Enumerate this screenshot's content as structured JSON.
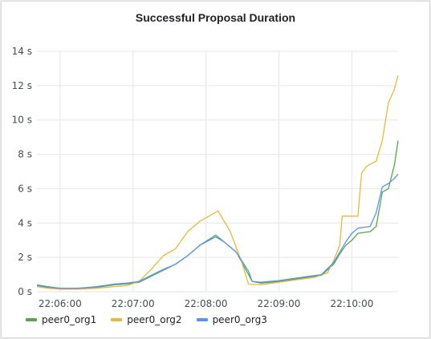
{
  "panel": {
    "title": "Successful Proposal Duration"
  },
  "chart_data": {
    "type": "line",
    "title": "Successful Proposal Duration",
    "xlabel": "",
    "ylabel": "",
    "ylim": [
      0,
      14
    ],
    "yticks": [
      {
        "value": 0,
        "label": "0 s"
      },
      {
        "value": 2,
        "label": "2 s"
      },
      {
        "value": 4,
        "label": "4 s"
      },
      {
        "value": 6,
        "label": "6 s"
      },
      {
        "value": 8,
        "label": "8 s"
      },
      {
        "value": 10,
        "label": "10 s"
      },
      {
        "value": 12,
        "label": "12 s"
      },
      {
        "value": 14,
        "label": "14 s"
      }
    ],
    "xlim": [
      "22:05:41",
      "22:10:38"
    ],
    "xticks": [
      {
        "value": "22:06:00",
        "label": "22:06:00"
      },
      {
        "value": "22:07:00",
        "label": "22:07:00"
      },
      {
        "value": "22:08:00",
        "label": "22:08:00"
      },
      {
        "value": "22:09:00",
        "label": "22:09:00"
      },
      {
        "value": "22:10:00",
        "label": "22:10:00"
      }
    ],
    "grid": true,
    "legend_position": "bottom-left",
    "series": [
      {
        "name": "peer0_org1",
        "color": "#56a64b",
        "points": [
          [
            "22:05:41",
            0.35
          ],
          [
            "22:05:50",
            0.25
          ],
          [
            "22:06:00",
            0.2
          ],
          [
            "22:06:15",
            0.2
          ],
          [
            "22:06:30",
            0.25
          ],
          [
            "22:06:45",
            0.4
          ],
          [
            "22:06:55",
            0.45
          ],
          [
            "22:07:05",
            0.55
          ],
          [
            "22:07:15",
            0.9
          ],
          [
            "22:07:25",
            1.25
          ],
          [
            "22:07:35",
            1.6
          ],
          [
            "22:07:45",
            2.1
          ],
          [
            "22:07:55",
            2.7
          ],
          [
            "22:08:08",
            3.2
          ],
          [
            "22:08:15",
            2.9
          ],
          [
            "22:08:25",
            2.3
          ],
          [
            "22:08:35",
            1.0
          ],
          [
            "22:08:38",
            0.6
          ],
          [
            "22:08:45",
            0.5
          ],
          [
            "22:09:00",
            0.6
          ],
          [
            "22:09:10",
            0.7
          ],
          [
            "22:09:25",
            0.85
          ],
          [
            "22:09:35",
            0.95
          ],
          [
            "22:09:45",
            1.6
          ],
          [
            "22:09:50",
            2.2
          ],
          [
            "22:09:55",
            2.7
          ],
          [
            "22:10:00",
            3.0
          ],
          [
            "22:10:05",
            3.4
          ],
          [
            "22:10:15",
            3.5
          ],
          [
            "22:10:20",
            3.8
          ],
          [
            "22:10:25",
            5.8
          ],
          [
            "22:10:30",
            6.0
          ],
          [
            "22:10:35",
            7.4
          ],
          [
            "22:10:38",
            8.8
          ]
        ]
      },
      {
        "name": "peer0_org2",
        "color": "#eab839",
        "points": [
          [
            "22:05:41",
            0.3
          ],
          [
            "22:05:50",
            0.2
          ],
          [
            "22:06:00",
            0.15
          ],
          [
            "22:06:15",
            0.15
          ],
          [
            "22:06:30",
            0.2
          ],
          [
            "22:06:45",
            0.3
          ],
          [
            "22:06:55",
            0.35
          ],
          [
            "22:07:05",
            0.6
          ],
          [
            "22:07:15",
            1.3
          ],
          [
            "22:07:25",
            2.1
          ],
          [
            "22:07:35",
            2.5
          ],
          [
            "22:07:45",
            3.5
          ],
          [
            "22:07:55",
            4.1
          ],
          [
            "22:08:05",
            4.5
          ],
          [
            "22:08:10",
            4.7
          ],
          [
            "22:08:20",
            3.5
          ],
          [
            "22:08:30",
            1.6
          ],
          [
            "22:08:35",
            0.45
          ],
          [
            "22:08:45",
            0.4
          ],
          [
            "22:09:00",
            0.55
          ],
          [
            "22:09:15",
            0.7
          ],
          [
            "22:09:30",
            0.85
          ],
          [
            "22:09:40",
            1.1
          ],
          [
            "22:09:45",
            1.8
          ],
          [
            "22:09:50",
            2.7
          ],
          [
            "22:09:52",
            4.4
          ],
          [
            "22:10:00",
            4.4
          ],
          [
            "22:10:05",
            4.4
          ],
          [
            "22:10:08",
            6.9
          ],
          [
            "22:10:12",
            7.3
          ],
          [
            "22:10:20",
            7.6
          ],
          [
            "22:10:25",
            8.8
          ],
          [
            "22:10:30",
            11.0
          ],
          [
            "22:10:35",
            11.8
          ],
          [
            "22:10:38",
            12.6
          ]
        ]
      },
      {
        "name": "peer0_org3",
        "color": "#5794f2",
        "points": [
          [
            "22:05:41",
            0.4
          ],
          [
            "22:05:50",
            0.3
          ],
          [
            "22:06:00",
            0.2
          ],
          [
            "22:06:15",
            0.2
          ],
          [
            "22:06:30",
            0.3
          ],
          [
            "22:06:45",
            0.45
          ],
          [
            "22:06:55",
            0.5
          ],
          [
            "22:07:05",
            0.6
          ],
          [
            "22:07:15",
            0.95
          ],
          [
            "22:07:25",
            1.3
          ],
          [
            "22:07:35",
            1.6
          ],
          [
            "22:07:45",
            2.1
          ],
          [
            "22:07:55",
            2.7
          ],
          [
            "22:08:08",
            3.3
          ],
          [
            "22:08:15",
            2.9
          ],
          [
            "22:08:25",
            2.3
          ],
          [
            "22:08:35",
            1.2
          ],
          [
            "22:08:38",
            0.6
          ],
          [
            "22:08:45",
            0.55
          ],
          [
            "22:09:00",
            0.65
          ],
          [
            "22:09:10",
            0.75
          ],
          [
            "22:09:25",
            0.9
          ],
          [
            "22:09:35",
            1.0
          ],
          [
            "22:09:45",
            1.7
          ],
          [
            "22:09:50",
            2.3
          ],
          [
            "22:09:55",
            2.9
          ],
          [
            "22:10:00",
            3.4
          ],
          [
            "22:10:05",
            3.7
          ],
          [
            "22:10:15",
            3.8
          ],
          [
            "22:10:20",
            4.6
          ],
          [
            "22:10:25",
            6.1
          ],
          [
            "22:10:30",
            6.3
          ],
          [
            "22:10:35",
            6.6
          ],
          [
            "22:10:38",
            6.85
          ]
        ]
      }
    ]
  }
}
